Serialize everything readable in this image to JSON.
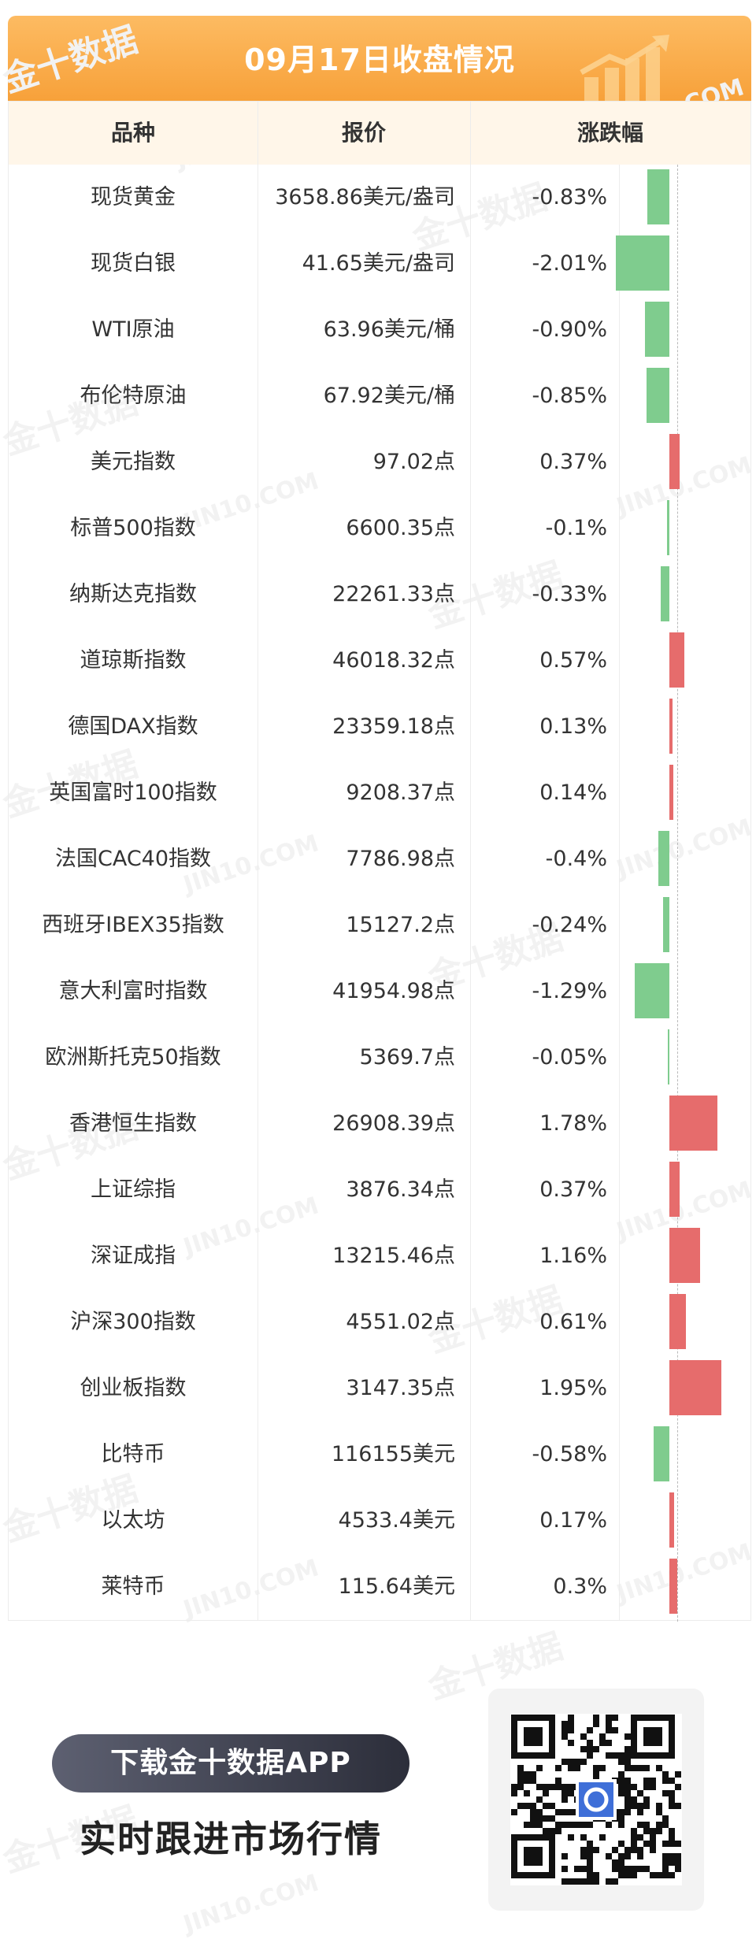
{
  "header": {
    "title": "09月17日收盘情况"
  },
  "table": {
    "columns": [
      "品种",
      "报价",
      "涨跌幅"
    ],
    "rows": [
      {
        "name": "现货黄金",
        "price": "3658.86美元/盎司",
        "change": "-0.83%",
        "pct": -0.83
      },
      {
        "name": "现货白银",
        "price": "41.65美元/盎司",
        "change": "-2.01%",
        "pct": -2.01
      },
      {
        "name": "WTI原油",
        "price": "63.96美元/桶",
        "change": "-0.90%",
        "pct": -0.9
      },
      {
        "name": "布伦特原油",
        "price": "67.92美元/桶",
        "change": "-0.85%",
        "pct": -0.85
      },
      {
        "name": "美元指数",
        "price": "97.02点",
        "change": "0.37%",
        "pct": 0.37
      },
      {
        "name": "标普500指数",
        "price": "6600.35点",
        "change": "-0.1%",
        "pct": -0.1
      },
      {
        "name": "纳斯达克指数",
        "price": "22261.33点",
        "change": "-0.33%",
        "pct": -0.33
      },
      {
        "name": "道琼斯指数",
        "price": "46018.32点",
        "change": "0.57%",
        "pct": 0.57
      },
      {
        "name": "德国DAX指数",
        "price": "23359.18点",
        "change": "0.13%",
        "pct": 0.13
      },
      {
        "name": "英国富时100指数",
        "price": "9208.37点",
        "change": "0.14%",
        "pct": 0.14
      },
      {
        "name": "法国CAC40指数",
        "price": "7786.98点",
        "change": "-0.4%",
        "pct": -0.4
      },
      {
        "name": "西班牙IBEX35指数",
        "price": "15127.2点",
        "change": "-0.24%",
        "pct": -0.24
      },
      {
        "name": "意大利富时指数",
        "price": "41954.98点",
        "change": "-1.29%",
        "pct": -1.29
      },
      {
        "name": "欧洲斯托克50指数",
        "price": "5369.7点",
        "change": "-0.05%",
        "pct": -0.05
      },
      {
        "name": "香港恒生指数",
        "price": "26908.39点",
        "change": "1.78%",
        "pct": 1.78
      },
      {
        "name": "上证综指",
        "price": "3876.34点",
        "change": "0.37%",
        "pct": 0.37
      },
      {
        "name": "深证成指",
        "price": "13215.46点",
        "change": "1.16%",
        "pct": 1.16
      },
      {
        "name": "沪深300指数",
        "price": "4551.02点",
        "change": "0.61%",
        "pct": 0.61
      },
      {
        "name": "创业板指数",
        "price": "3147.35点",
        "change": "1.95%",
        "pct": 1.95
      },
      {
        "name": "比特币",
        "price": "116155美元",
        "change": "-0.58%",
        "pct": -0.58
      },
      {
        "name": "以太坊",
        "price": "4533.4美元",
        "change": "0.17%",
        "pct": 0.17
      },
      {
        "name": "莱特币",
        "price": "115.64美元",
        "change": "0.3%",
        "pct": 0.3
      }
    ]
  },
  "colors": {
    "up": "#e66c6c",
    "down": "#7fcc8e",
    "accent": "#f7a13a"
  },
  "watermark": {
    "text_cn": "金十数据",
    "text_en": "JIN10.COM"
  },
  "promo": {
    "download": "下载金十数据APP",
    "tagline": "实时跟进市场行情"
  },
  "icons": {
    "header": "rising-chart-icon",
    "qr": "qr-code-icon",
    "qr_center": "app-logo-icon"
  }
}
